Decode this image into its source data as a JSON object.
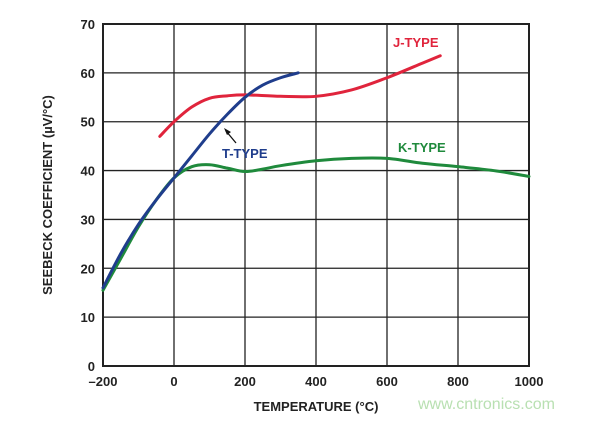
{
  "chart_data": {
    "type": "line",
    "title": "",
    "xlabel": "TEMPERATURE (°C)",
    "ylabel": "SEEBECK COEFFICIENT (µV/°C)",
    "xlim": [
      -200,
      1000
    ],
    "ylim": [
      0,
      70
    ],
    "xticks": [
      -200,
      0,
      200,
      400,
      600,
      800,
      1000
    ],
    "xtick_labels": [
      "–200",
      "0",
      "200",
      "400",
      "600",
      "800",
      "1000"
    ],
    "yticks": [
      0,
      10,
      20,
      30,
      40,
      50,
      60,
      70
    ],
    "ytick_labels": [
      "0",
      "10",
      "20",
      "30",
      "40",
      "50",
      "60",
      "70"
    ],
    "grid": true,
    "series": [
      {
        "name": "J-TYPE",
        "color": "#e0243c",
        "x": [
          -40,
          0,
          50,
          100,
          150,
          200,
          300,
          400,
          500,
          600,
          700,
          750
        ],
        "y": [
          47,
          50,
          53,
          54.8,
          55.3,
          55.5,
          55.2,
          55.2,
          56.5,
          59,
          62,
          63.5
        ]
      },
      {
        "name": "T-TYPE",
        "color": "#1f3d8c",
        "x": [
          -200,
          -150,
          -100,
          -50,
          0,
          50,
          100,
          150,
          200,
          250,
          300,
          350
        ],
        "y": [
          16,
          23,
          29,
          34,
          38.5,
          43,
          47.5,
          51.5,
          55,
          57.5,
          59,
          60
        ]
      },
      {
        "name": "K-TYPE",
        "color": "#1f8a3c",
        "x": [
          -200,
          -150,
          -100,
          -50,
          0,
          50,
          100,
          150,
          200,
          250,
          300,
          400,
          500,
          600,
          700,
          800,
          900,
          1000
        ],
        "y": [
          15.5,
          22,
          28.5,
          34,
          38.5,
          40.8,
          41.2,
          40.5,
          39.8,
          40.3,
          41,
          42,
          42.5,
          42.5,
          41.5,
          40.8,
          40,
          38.8
        ]
      }
    ]
  },
  "watermark": "www.cntronics.com"
}
